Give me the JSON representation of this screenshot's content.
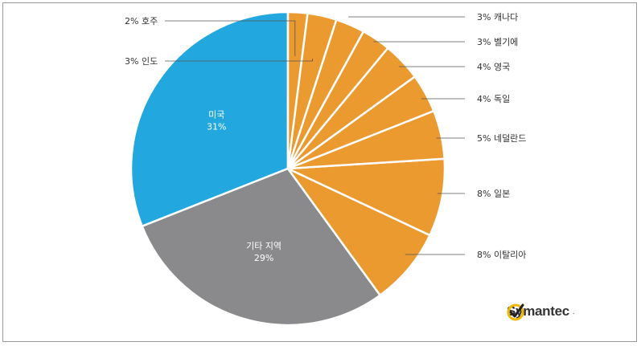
{
  "chart_data": {
    "type": "pie",
    "slices": [
      {
        "label": "미국",
        "value": 31,
        "color": "#23a7df",
        "label_pos": "inside"
      },
      {
        "label": "기타 지역",
        "value": 29,
        "color": "#8a8a8d",
        "label_pos": "inside"
      },
      {
        "label": "이탈리아",
        "value": 8,
        "color": "#ea9a2f",
        "label_pos": "right"
      },
      {
        "label": "일본",
        "value": 8,
        "color": "#ea9a2f",
        "label_pos": "right"
      },
      {
        "label": "네덜란드",
        "value": 5,
        "color": "#ea9a2f",
        "label_pos": "right"
      },
      {
        "label": "독일",
        "value": 4,
        "color": "#ea9a2f",
        "label_pos": "right"
      },
      {
        "label": "영국",
        "value": 4,
        "color": "#ea9a2f",
        "label_pos": "right"
      },
      {
        "label": "벨기에",
        "value": 3,
        "color": "#ea9a2f",
        "label_pos": "right"
      },
      {
        "label": "캐나다",
        "value": 3,
        "color": "#ea9a2f",
        "label_pos": "right"
      },
      {
        "label": "인도",
        "value": 3,
        "color": "#ea9a2f",
        "label_pos": "left"
      },
      {
        "label": "호주",
        "value": 2,
        "color": "#ea9a2f",
        "label_pos": "left"
      }
    ]
  },
  "brand": {
    "name": "Symantec",
    "suffix": "."
  }
}
